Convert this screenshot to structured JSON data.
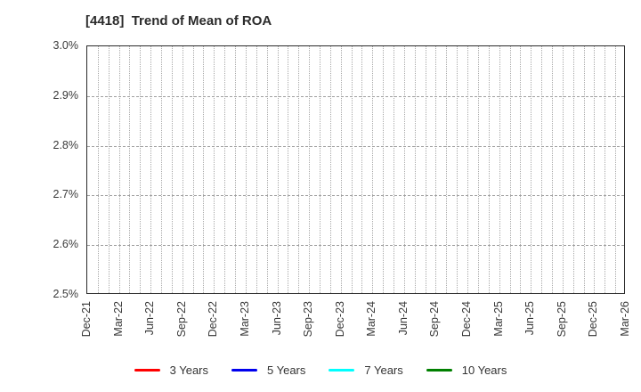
{
  "chart_data": {
    "type": "line",
    "title": "[4418]  Trend of Mean of ROA",
    "xlabel": "",
    "ylabel": "",
    "x_tick_labels": [
      "Dec-21",
      "Mar-22",
      "Jun-22",
      "Sep-22",
      "Dec-22",
      "Mar-23",
      "Jun-23",
      "Sep-23",
      "Dec-23",
      "Mar-24",
      "Jun-24",
      "Sep-24",
      "Dec-24",
      "Mar-25",
      "Jun-25",
      "Sep-25",
      "Dec-25",
      "Mar-26"
    ],
    "x_minor_unit": "month",
    "months_per_labeled_tick": 3,
    "total_month_intervals": 51,
    "ylim": [
      2.5,
      3.0
    ],
    "y_tick_values": [
      3.0,
      2.9,
      2.8,
      2.7,
      2.6,
      2.5
    ],
    "y_tick_labels": [
      "3.0%",
      "2.9%",
      "2.8%",
      "2.7%",
      "2.6%",
      "2.5%"
    ],
    "grid": "dotted",
    "legend_position": "bottom",
    "series": [
      {
        "name": "3 Years",
        "color": "#ff0000",
        "values": []
      },
      {
        "name": "5 Years",
        "color": "#0000ee",
        "values": []
      },
      {
        "name": "7 Years",
        "color": "#00ffff",
        "values": []
      },
      {
        "name": "10 Years",
        "color": "#008000",
        "values": []
      }
    ],
    "plot_has_visible_data": false
  },
  "colors": {
    "grid": "#a9a9a9",
    "frame": "#2a2a2a",
    "text": "#3a3a3a",
    "background": "#ffffff"
  }
}
